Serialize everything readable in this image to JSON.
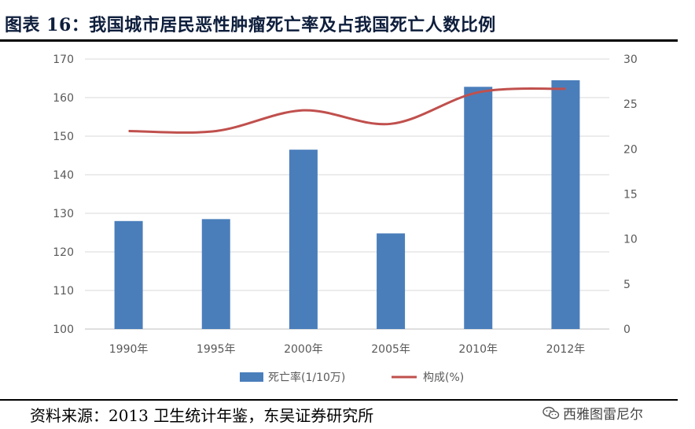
{
  "header": {
    "title": "图表 16：我国城市居民恶性肿瘤死亡率及占我国死亡人数比例"
  },
  "footer": {
    "source": "资料来源：2013 卫生统计年鉴，东吴证券研究所",
    "watermark": "西雅图雷尼尔"
  },
  "colors": {
    "bar": "#4a7ebb",
    "line": "#c0504d",
    "title": "#0e1e3c"
  },
  "icons": {
    "watermark_icon": "wechat-chat-bubbles-icon"
  },
  "chart_data": {
    "type": "bar",
    "categories": [
      "1990年",
      "1995年",
      "2000年",
      "2005年",
      "2010年",
      "2012年"
    ],
    "series": [
      {
        "name": "死亡率(1/10万)",
        "type": "bar",
        "axis": "left",
        "values": [
          128.0,
          128.5,
          146.5,
          124.8,
          162.8,
          164.5
        ]
      },
      {
        "name": "构成(%)",
        "type": "line",
        "axis": "right",
        "values": [
          22.0,
          22.0,
          24.3,
          22.8,
          26.3,
          26.7
        ]
      }
    ],
    "ylim_left": [
      100,
      170
    ],
    "yticks_left": [
      "100",
      "110",
      "120",
      "130",
      "140",
      "150",
      "160",
      "170"
    ],
    "ylim_right": [
      0,
      30
    ],
    "yticks_right": [
      "0",
      "5",
      "10",
      "15",
      "20",
      "25",
      "30"
    ],
    "grid": true,
    "legend_position": "bottom"
  }
}
